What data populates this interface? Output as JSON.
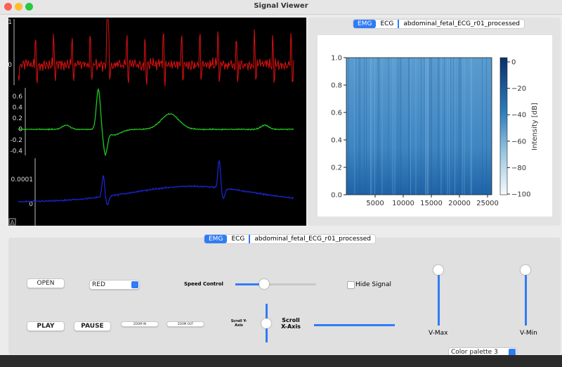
{
  "window": {
    "title": "Signal Viewer"
  },
  "signal_plots": {
    "top": {
      "yticks": [
        "1",
        "0"
      ]
    },
    "middle": {
      "yticks": [
        "0.6",
        "0.4",
        "0.2",
        "0",
        "-0.2",
        "-0.4"
      ]
    },
    "bottom": {
      "yticks": [
        "0.0001",
        "0"
      ]
    },
    "corner_icon": "A"
  },
  "top_tabs": [
    "EMG",
    "ECG",
    "abdominal_fetal_ECG_r01_processed"
  ],
  "spectrogram": {
    "yticks": [
      "0.0",
      "0.2",
      "0.4",
      "0.6",
      "0.8",
      "1.0"
    ],
    "xticks": [
      "5000",
      "10000",
      "15000",
      "20000",
      "25000"
    ],
    "colorbar_ticks": [
      "0",
      "−20",
      "−40",
      "−60",
      "−80",
      "−100"
    ],
    "colorbar_label": "Intensity [dB]"
  },
  "bottom_tabs": [
    "EMG",
    "ECG",
    "abdominal_fetal_ECG_r01_processed"
  ],
  "controls": {
    "open": "OPEN",
    "color_select": "RED",
    "speed_label": "Speed Control",
    "hide_signal": "Hide Signal",
    "play": "PLAY",
    "pause": "PAUSE",
    "zoom_in": "ZOOM IN",
    "zoom_out": "ZOOM OUT",
    "scroll_y": "Scroll Y-Axis",
    "scroll_x": "Scroll X-Axis",
    "v_max": "V-Max",
    "v_min": "V-Min",
    "palette": "Color palette 3"
  }
}
